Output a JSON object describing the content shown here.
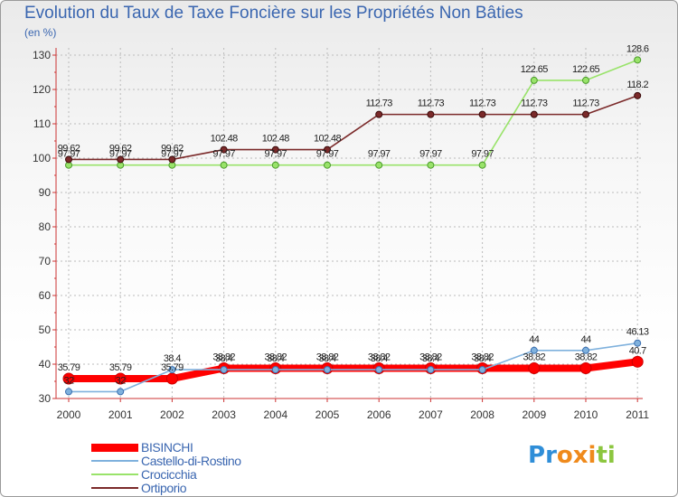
{
  "title": "Evolution du Taux de Taxe Foncière sur les Propriétés Non Bâties",
  "unit_label": "(en %)",
  "logo": {
    "letters": [
      "P",
      "r",
      "o",
      "x",
      "i",
      "t",
      "i"
    ],
    "colors": [
      "#2f8ed8",
      "#2f8ed8",
      "#ef8a1c",
      "#ef8a1c",
      "#ef8a1c",
      "#8cc63f",
      "#8cc63f"
    ]
  },
  "chart_data": {
    "type": "line",
    "title": "Evolution du Taux de Taxe Foncière sur les Propriétés Non Bâties",
    "ylabel": "(en %)",
    "xlabel": "",
    "ylim": [
      30,
      130
    ],
    "yticks": [
      30,
      40,
      50,
      60,
      70,
      80,
      90,
      100,
      110,
      120,
      130
    ],
    "categories": [
      "2000",
      "2001",
      "2002",
      "2003",
      "2004",
      "2005",
      "2006",
      "2007",
      "2008",
      "2009",
      "2010",
      "2011"
    ],
    "grid": true,
    "legend_position": "bottom-left",
    "series": [
      {
        "name": "BISINCHI",
        "color": "#ff0000",
        "values": [
          35.79,
          35.79,
          35.79,
          38.82,
          38.82,
          38.82,
          38.82,
          38.82,
          38.82,
          38.82,
          38.82,
          40.7
        ],
        "labels": [
          "35.79",
          "35.79",
          "35.79",
          "38.82",
          "38.82",
          "38.82",
          "38.82",
          "38.82",
          "38.82",
          "38.82",
          "38.82",
          "40.7"
        ]
      },
      {
        "name": "Castello-di-Rostino",
        "color": "#7fb1dd",
        "values": [
          32,
          32,
          38.4,
          38.4,
          38.4,
          38.4,
          38.4,
          38.4,
          38.4,
          44,
          44,
          46.13
        ],
        "labels": [
          "32",
          "32",
          "38.4",
          "38.4",
          "38.4",
          "38.4",
          "38.4",
          "38.4",
          "38.4",
          "44",
          "44",
          "46.13"
        ]
      },
      {
        "name": "Crocicchia",
        "color": "#99e36a",
        "values": [
          97.97,
          97.97,
          97.97,
          97.97,
          97.97,
          97.97,
          97.97,
          97.97,
          97.97,
          122.65,
          122.65,
          128.6
        ],
        "labels": [
          "97.97",
          "97.97",
          "97.97",
          "97.97",
          "97.97",
          "97.97",
          "97.97",
          "97.97",
          "97.97",
          "122.65",
          "122.65",
          "128.6"
        ]
      },
      {
        "name": "Ortiporio",
        "color": "#7b2a2a",
        "values": [
          99.62,
          99.62,
          99.62,
          102.48,
          102.48,
          102.48,
          112.73,
          112.73,
          112.73,
          112.73,
          112.73,
          118.2
        ],
        "labels": [
          "99.62",
          "99.62",
          "99.62",
          "102.48",
          "102.48",
          "102.48",
          "112.73",
          "112.73",
          "112.73",
          "112.73",
          "112.73",
          "118.2"
        ]
      }
    ]
  }
}
